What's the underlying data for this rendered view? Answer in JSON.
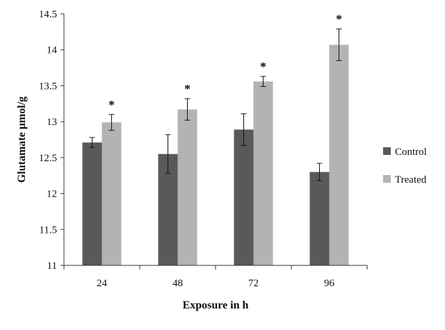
{
  "chart_data": {
    "type": "bar",
    "title": "",
    "xlabel": "Exposure in h",
    "ylabel": "Glutamate µmol/g",
    "categories": [
      "24",
      "48",
      "72",
      "96"
    ],
    "ylim": [
      11,
      14.5
    ],
    "yticks": [
      "11",
      "11.5",
      "12",
      "12.5",
      "13",
      "13.5",
      "14",
      "14.5"
    ],
    "series": [
      {
        "name": "Control",
        "color": "#595959",
        "values": [
          12.71,
          12.55,
          12.89,
          12.3
        ],
        "errors": [
          0.07,
          0.27,
          0.22,
          0.12
        ]
      },
      {
        "name": "Treated",
        "color": "#b3b3b3",
        "values": [
          12.99,
          13.17,
          13.56,
          14.07
        ],
        "errors": [
          0.11,
          0.15,
          0.07,
          0.22
        ]
      }
    ],
    "annotations": [
      {
        "category": "24",
        "series": "Treated",
        "text": "*"
      },
      {
        "category": "48",
        "series": "Treated",
        "text": "*"
      },
      {
        "category": "72",
        "series": "Treated",
        "text": "*"
      },
      {
        "category": "96",
        "series": "Treated",
        "text": "*"
      }
    ],
    "legend_position": "right",
    "grid": false
  }
}
